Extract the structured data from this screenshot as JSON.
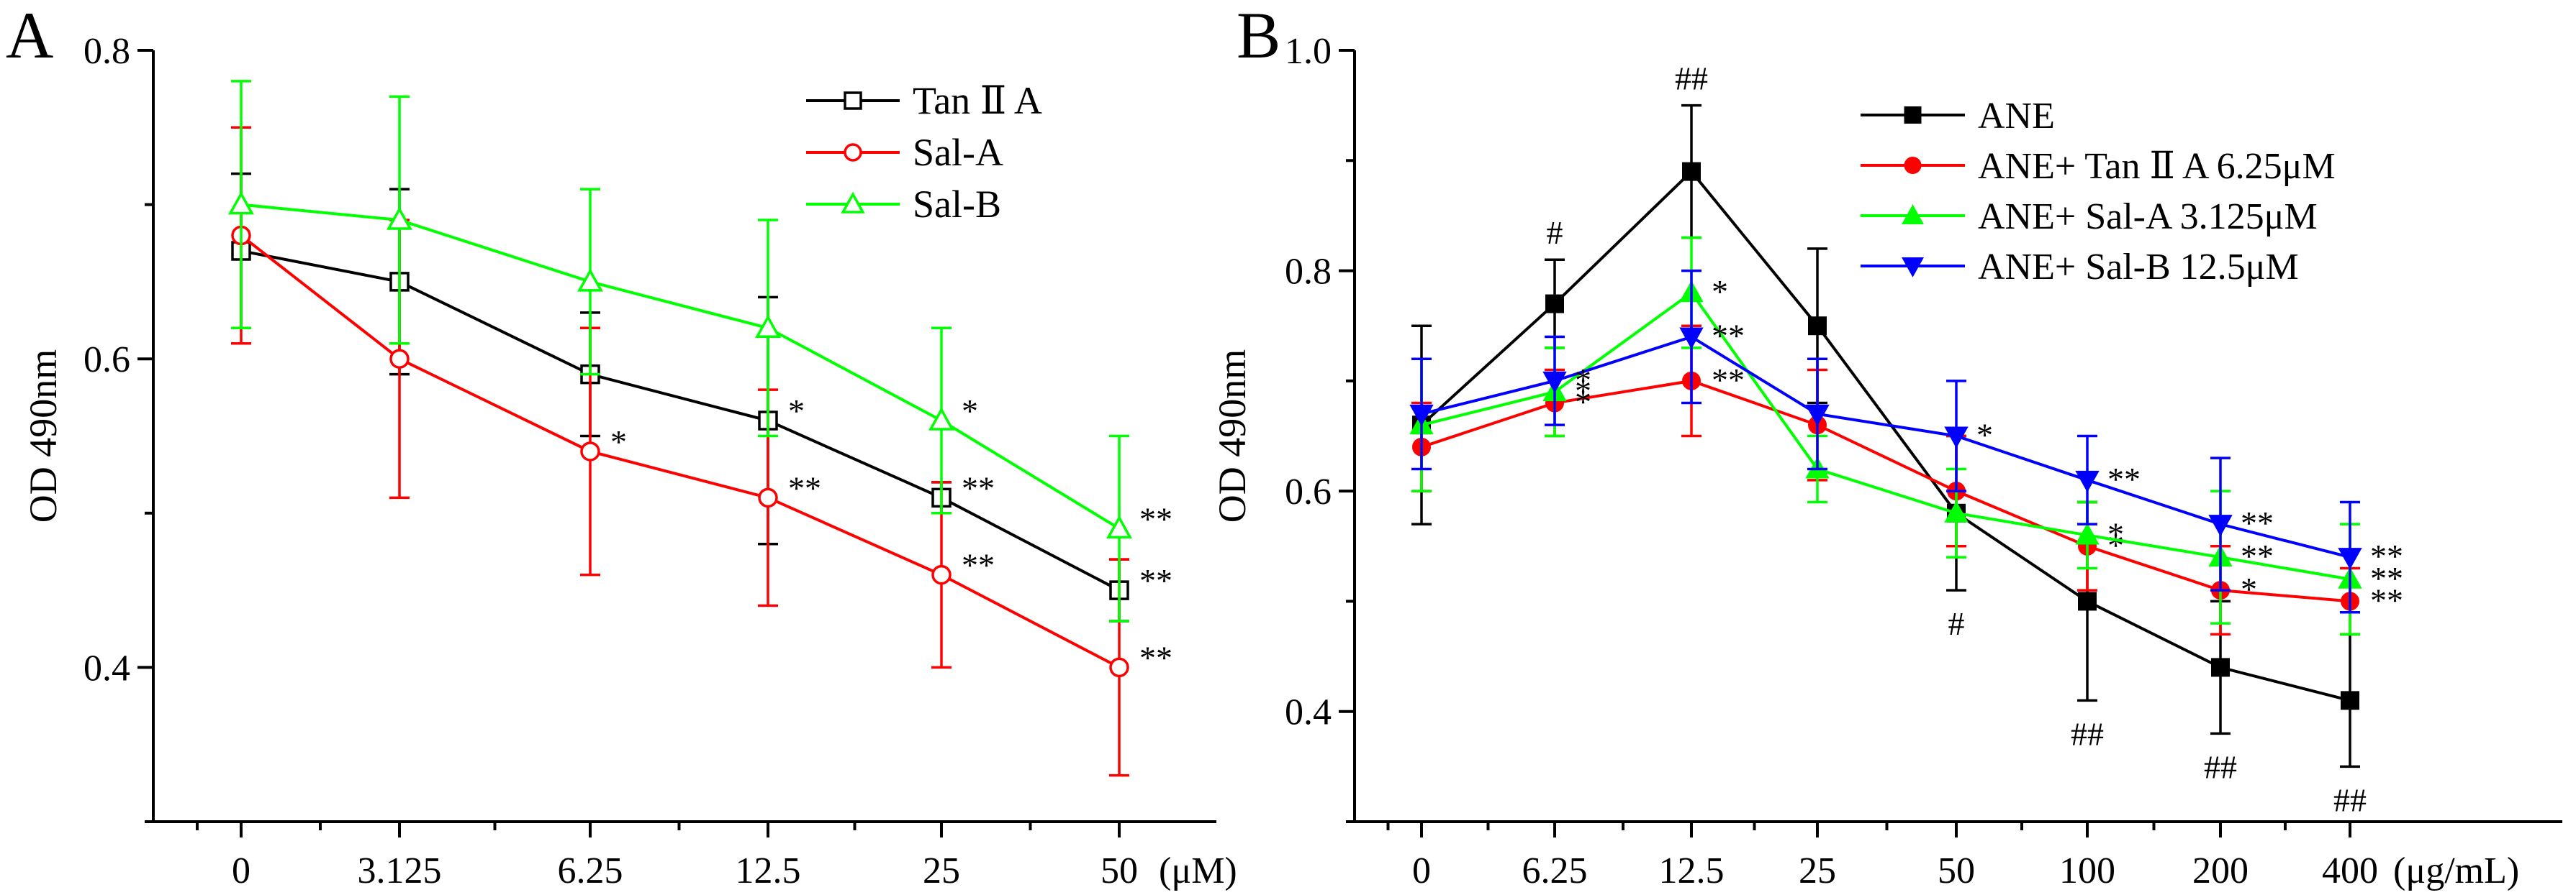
{
  "chart_data": [
    {
      "type": "line",
      "panel_label": "A",
      "ylabel": "OD 490nm",
      "x_unit": "(μM)",
      "ylim": [
        0.3,
        0.8
      ],
      "yticks": [
        "0.4",
        "0.6",
        "0.8"
      ],
      "ytick_values": [
        0.4,
        0.6,
        0.8
      ],
      "categories": [
        "0",
        "3.125",
        "6.25",
        "12.5",
        "25",
        "50"
      ],
      "series": [
        {
          "name": "Tan Ⅱ A",
          "color": "#000000",
          "marker": "square-open",
          "values": [
            0.67,
            0.65,
            0.59,
            0.56,
            0.51,
            0.45
          ],
          "errors": [
            0.05,
            0.06,
            0.04,
            0.08,
            0.01,
            0.02
          ],
          "labels": [
            "",
            "",
            "",
            "*",
            "**",
            "**"
          ]
        },
        {
          "name": "Sal-A",
          "color": "#ff0000",
          "marker": "circle-open",
          "values": [
            0.68,
            0.6,
            0.54,
            0.51,
            0.46,
            0.4
          ],
          "errors": [
            0.07,
            0.09,
            0.08,
            0.07,
            0.06,
            0.07
          ],
          "labels": [
            "",
            "",
            "*",
            "**",
            "**",
            "**"
          ]
        },
        {
          "name": "Sal-B",
          "color": "#00ff00",
          "marker": "triangle-open",
          "values": [
            0.7,
            0.69,
            0.65,
            0.62,
            0.56,
            0.49
          ],
          "errors": [
            0.08,
            0.08,
            0.06,
            0.07,
            0.06,
            0.06
          ],
          "labels": [
            "",
            "",
            "",
            "",
            "*",
            "**"
          ]
        }
      ]
    },
    {
      "type": "line",
      "panel_label": "B",
      "ylabel": "OD 490nm",
      "x_unit": "(μg/mL)",
      "ylim": [
        0.3,
        1.0
      ],
      "yticks": [
        "0.4",
        "0.6",
        "0.8",
        "1.0"
      ],
      "ytick_values": [
        0.4,
        0.6,
        0.8,
        1.0
      ],
      "categories": [
        "0",
        "6.25",
        "12.5",
        "25",
        "50",
        "100",
        "200",
        "400"
      ],
      "series": [
        {
          "name": "ANE",
          "color": "#000000",
          "marker": "square-filled",
          "values": [
            0.66,
            0.77,
            0.89,
            0.75,
            0.58,
            0.5,
            0.44,
            0.41
          ],
          "errors": [
            0.09,
            0.04,
            0.06,
            0.07,
            0.07,
            0.09,
            0.06,
            0.06
          ],
          "labels": [
            "",
            "#",
            "##",
            "",
            "#",
            "##",
            "##",
            "##"
          ]
        },
        {
          "name": "ANE+ Tan Ⅱ A 6.25μM",
          "color": "#ff0000",
          "marker": "circle-filled",
          "values": [
            0.64,
            0.68,
            0.7,
            0.66,
            0.6,
            0.55,
            0.51,
            0.5
          ],
          "errors": [
            0.04,
            0.03,
            0.05,
            0.05,
            0.05,
            0.04,
            0.04,
            0.03
          ],
          "labels": [
            "",
            "*",
            "**",
            "",
            "",
            "*",
            "*",
            "**"
          ]
        },
        {
          "name": "ANE+ Sal-A 3.125μM",
          "color": "#00ff00",
          "marker": "triangle-up-filled",
          "values": [
            0.66,
            0.69,
            0.78,
            0.62,
            0.58,
            0.56,
            0.54,
            0.52
          ],
          "errors": [
            0.06,
            0.04,
            0.05,
            0.03,
            0.04,
            0.03,
            0.06,
            0.05
          ],
          "labels": [
            "",
            "*",
            "*",
            "",
            "",
            "*",
            "**",
            "**"
          ]
        },
        {
          "name": "ANE+ Sal-B 12.5μM",
          "color": "#0000ff",
          "marker": "triangle-down-filled",
          "values": [
            0.67,
            0.7,
            0.74,
            0.67,
            0.65,
            0.61,
            0.57,
            0.54
          ],
          "errors": [
            0.05,
            0.04,
            0.06,
            0.05,
            0.05,
            0.04,
            0.06,
            0.05
          ],
          "labels": [
            "",
            "*",
            "**",
            "",
            "*",
            "**",
            "**",
            "**"
          ]
        }
      ]
    }
  ]
}
